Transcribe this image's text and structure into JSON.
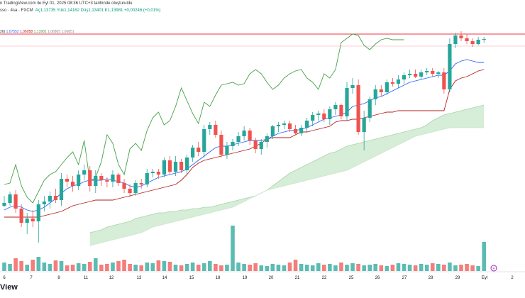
{
  "header": {
    "published": "n TradingView.com ile Eyl 01, 2025 08:36 UTC+3 tarihinde oluşturuldu",
    "symbol_line": "sso · 4sa · FXCM",
    "ohlc": "Aç1,13735 Yük1,14162 Düş1,13401 K1,13981 +0,00246 (+0,01%)",
    "indicator_line_prefix": "26)",
    "indicator_values": [
      "1,07552",
      "1,06058",
      "1,13981"
    ],
    "indicator_greyed": "1,06805",
    "indicator_greyed2": "1,06851"
  },
  "watermark": "View",
  "colors": {
    "up": "#26a69a",
    "down": "#ef5350",
    "conversion": "#2962ff",
    "base": "#b71c1c",
    "lagging": "#43a047",
    "cloud": "#a5d6a7",
    "hline": "#f23645"
  },
  "chart_data": {
    "type": "candlestick",
    "title": "",
    "xlabel": "",
    "ylabel": "",
    "x_ticks": [
      "6",
      "7",
      "8",
      "11",
      "12",
      "13",
      "14",
      "15",
      "18",
      "19",
      "20",
      "21",
      "22",
      "25",
      "26",
      "27",
      "28",
      "29",
      "Eyl",
      "2"
    ],
    "indicator": "Ichimoku",
    "price_axis": "hidden",
    "candles": [
      [
        290,
        292,
        276,
        286
      ],
      [
        286,
        290,
        270,
        274
      ],
      [
        274,
        300,
        268,
        294
      ],
      [
        294,
        320,
        288,
        314
      ],
      [
        314,
        330,
        300,
        308
      ],
      [
        308,
        320,
        296,
        312
      ],
      [
        312,
        342,
        282,
        288
      ],
      [
        288,
        298,
        276,
        284
      ],
      [
        284,
        294,
        270,
        276
      ],
      [
        276,
        286,
        266,
        282
      ],
      [
        282,
        290,
        244,
        252
      ],
      [
        252,
        264,
        246,
        256
      ],
      [
        256,
        270,
        248,
        262
      ],
      [
        262,
        268,
        240,
        246
      ],
      [
        246,
        254,
        232,
        240
      ],
      [
        240,
        270,
        234,
        262
      ],
      [
        262,
        272,
        240,
        248
      ],
      [
        248,
        262,
        244,
        254
      ],
      [
        254,
        264,
        250,
        256
      ],
      [
        256,
        264,
        240,
        246
      ],
      [
        246,
        262,
        244,
        258
      ],
      [
        258,
        272,
        252,
        266
      ],
      [
        266,
        278,
        260,
        272
      ],
      [
        272,
        276,
        254,
        258
      ],
      [
        258,
        266,
        252,
        260
      ],
      [
        260,
        264,
        238,
        244
      ],
      [
        244,
        250,
        238,
        242
      ],
      [
        242,
        252,
        238,
        246
      ],
      [
        246,
        250,
        222,
        226
      ],
      [
        226,
        246,
        220,
        242
      ],
      [
        242,
        248,
        220,
        228
      ],
      [
        228,
        244,
        224,
        240
      ],
      [
        240,
        246,
        218,
        222
      ],
      [
        222,
        228,
        204,
        208
      ],
      [
        208,
        220,
        200,
        214
      ],
      [
        214,
        222,
        176,
        182
      ],
      [
        182,
        190,
        172,
        176
      ],
      [
        176,
        194,
        170,
        190
      ],
      [
        190,
        222,
        184,
        218
      ],
      [
        218,
        224,
        200,
        206
      ],
      [
        206,
        212,
        196,
        200
      ],
      [
        200,
        206,
        186,
        192
      ],
      [
        192,
        198,
        178,
        184
      ],
      [
        184,
        204,
        180,
        198
      ],
      [
        198,
        216,
        194,
        210
      ],
      [
        210,
        218,
        196,
        200
      ],
      [
        200,
        208,
        188,
        192
      ],
      [
        192,
        196,
        176,
        178
      ],
      [
        178,
        186,
        172,
        176
      ],
      [
        176,
        182,
        170,
        174
      ],
      [
        174,
        186,
        170,
        182
      ],
      [
        182,
        190,
        176,
        188
      ],
      [
        188,
        192,
        176,
        180
      ],
      [
        180,
        186,
        166,
        170
      ],
      [
        170,
        178,
        158,
        162
      ],
      [
        162,
        170,
        156,
        160
      ],
      [
        160,
        172,
        154,
        168
      ],
      [
        168,
        176,
        150,
        154
      ],
      [
        154,
        162,
        144,
        148
      ],
      [
        148,
        168,
        146,
        164
      ],
      [
        164,
        170,
        116,
        124
      ],
      [
        124,
        132,
        110,
        120
      ],
      [
        120,
        190,
        112,
        186
      ],
      [
        186,
        212,
        156,
        166
      ],
      [
        166,
        172,
        136,
        140
      ],
      [
        140,
        148,
        120,
        126
      ],
      [
        126,
        136,
        120,
        130
      ],
      [
        130,
        134,
        112,
        116
      ],
      [
        116,
        122,
        110,
        118
      ],
      [
        118,
        124,
        106,
        112
      ],
      [
        112,
        118,
        102,
        106
      ],
      [
        106,
        110,
        98,
        104
      ],
      [
        104,
        110,
        98,
        108
      ],
      [
        108,
        112,
        98,
        102
      ],
      [
        102,
        106,
        96,
        100
      ],
      [
        100,
        108,
        96,
        104
      ],
      [
        104,
        110,
        100,
        102
      ],
      [
        102,
        132,
        96,
        126
      ],
      [
        126,
        130,
        54,
        62
      ],
      [
        62,
        68,
        46,
        50
      ],
      [
        50,
        58,
        44,
        54
      ],
      [
        54,
        62,
        48,
        58
      ],
      [
        58,
        66,
        54,
        62
      ],
      [
        62,
        64,
        52,
        56
      ],
      [
        56,
        60,
        52,
        55
      ]
    ],
    "volume": [
      12,
      10,
      18,
      14,
      9,
      16,
      20,
      12,
      10,
      15,
      14,
      8,
      9,
      11,
      10,
      13,
      18,
      9,
      10,
      12,
      14,
      16,
      10,
      9,
      8,
      12,
      11,
      15,
      14,
      13,
      9,
      8,
      10,
      12,
      9,
      11,
      14,
      10,
      8,
      9,
      64,
      12,
      10,
      9,
      11,
      8,
      7,
      10,
      9,
      8,
      12,
      16,
      10,
      9,
      8,
      11,
      9,
      10,
      8,
      12,
      9,
      11,
      10,
      8,
      9,
      10,
      8,
      7,
      9,
      11,
      10,
      9,
      8,
      10,
      9,
      11,
      10,
      9,
      12,
      8,
      9,
      10,
      8,
      7,
      41
    ],
    "conversion_line": [
      296,
      292,
      290,
      292,
      296,
      298,
      296,
      292,
      286,
      280,
      272,
      266,
      262,
      260,
      256,
      254,
      254,
      254,
      252,
      254,
      256,
      258,
      262,
      264,
      262,
      258,
      254,
      250,
      248,
      246,
      244,
      242,
      238,
      232,
      226,
      220,
      214,
      208,
      206,
      206,
      204,
      202,
      200,
      198,
      198,
      198,
      196,
      192,
      188,
      186,
      184,
      184,
      182,
      180,
      176,
      172,
      168,
      166,
      164,
      162,
      158,
      150,
      148,
      146,
      142,
      138,
      136,
      132,
      128,
      124,
      120,
      116,
      114,
      112,
      110,
      108,
      106,
      106,
      100,
      90,
      86,
      84,
      86,
      88,
      88
    ],
    "base_line": [
      306,
      306,
      306,
      306,
      306,
      306,
      306,
      304,
      302,
      300,
      298,
      294,
      290,
      288,
      286,
      284,
      282,
      282,
      282,
      282,
      280,
      278,
      276,
      274,
      272,
      270,
      268,
      266,
      264,
      262,
      260,
      254,
      246,
      236,
      230,
      226,
      224,
      222,
      220,
      218,
      216,
      214,
      212,
      210,
      206,
      202,
      196,
      194,
      194,
      194,
      194,
      190,
      186,
      186,
      184,
      182,
      180,
      178,
      172,
      170,
      170,
      168,
      168,
      166,
      164,
      162,
      160,
      158,
      158,
      156,
      156,
      156,
      156,
      156,
      156,
      156,
      156,
      156,
      126,
      114,
      110,
      108,
      104,
      100,
      98
    ],
    "lagging_span": [
      260,
      258,
      232,
      262,
      278,
      286,
      270,
      254,
      246,
      242,
      232,
      222,
      214,
      232,
      198,
      256,
      250,
      228,
      190,
      202,
      232,
      246,
      210,
      202,
      212,
      184,
      166,
      158,
      176,
      170,
      150,
      124,
      142,
      160,
      174,
      144,
      150,
      134,
      120,
      118,
      116,
      120,
      118,
      104,
      98,
      104,
      116,
      126,
      120,
      110,
      104,
      100,
      98,
      110,
      116,
      126,
      104,
      110,
      98,
      60,
      54,
      48,
      50,
      64,
      70,
      62,
      56,
      54,
      56,
      56,
      56
    ],
    "span_a": [
      null,
      null,
      null,
      null,
      null,
      null,
      null,
      null,
      null,
      null,
      null,
      null,
      null,
      null,
      null,
      null,
      null,
      null,
      null,
      null,
      null,
      null,
      null,
      null,
      null,
      null,
      null,
      null,
      null,
      null,
      null,
      null,
      null,
      null,
      null,
      null,
      null,
      null,
      null,
      null,
      null,
      null,
      null,
      null,
      null,
      null,
      null,
      null,
      null,
      null,
      null,
      null,
      null,
      null,
      null,
      null,
      null,
      null,
      null,
      null,
      null,
      null,
      null,
      null,
      null,
      null,
      null,
      null,
      null,
      null,
      null,
      null,
      null,
      null,
      null,
      null,
      null,
      null,
      null,
      null,
      null,
      null,
      null,
      null,
      null
    ],
    "cloud_upper": [
      328,
      326,
      324,
      320,
      318,
      316,
      314,
      312,
      308,
      306,
      304,
      302,
      300,
      300,
      298,
      298,
      296,
      296,
      294,
      294,
      292,
      292,
      290,
      288,
      286,
      284,
      282,
      280,
      278,
      276,
      272,
      268,
      262,
      256,
      250,
      244,
      240,
      236,
      232,
      228,
      224,
      220,
      216,
      214,
      210,
      206,
      204,
      202,
      200,
      198,
      196,
      194,
      192,
      190,
      188,
      186,
      184,
      182,
      180,
      176,
      170,
      166,
      162,
      160,
      158,
      156,
      154,
      152,
      150,
      148
    ],
    "cloud_lower": [
      346,
      344,
      342,
      340,
      338,
      336,
      334,
      332,
      330,
      328,
      324,
      320,
      318,
      316,
      314,
      312,
      310,
      308,
      306,
      304,
      302,
      300,
      298,
      296,
      294,
      292,
      288,
      284,
      280,
      276,
      272,
      268,
      266,
      264,
      262,
      260,
      258,
      256,
      254,
      252,
      250,
      248,
      246,
      244,
      242,
      240,
      236,
      232,
      228,
      224,
      220,
      216,
      212,
      208,
      204,
      200,
      196,
      192,
      190,
      188,
      186,
      184,
      182,
      180,
      180,
      180,
      180,
      180,
      180,
      180
    ],
    "hlines": [
      48,
      65
    ]
  }
}
